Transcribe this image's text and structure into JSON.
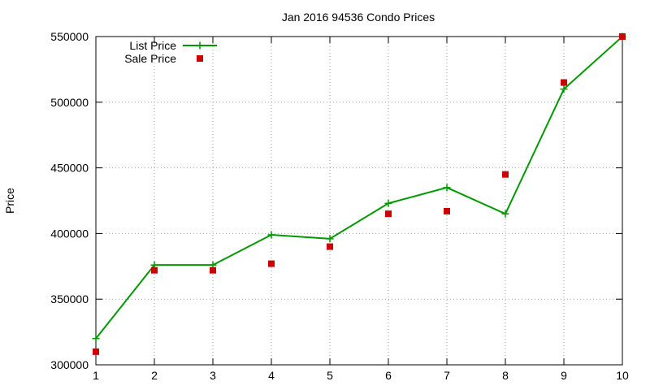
{
  "chart_data": {
    "type": "line",
    "title": "Jan 2016 94536 Condo Prices",
    "xlabel": "",
    "ylabel": "Price",
    "x": [
      1,
      2,
      3,
      4,
      5,
      6,
      7,
      8,
      9,
      10
    ],
    "xlim": [
      1,
      10
    ],
    "ylim": [
      300000,
      550000
    ],
    "xticks": [
      1,
      2,
      3,
      4,
      5,
      6,
      7,
      8,
      9,
      10
    ],
    "yticks": [
      300000,
      350000,
      400000,
      450000,
      500000,
      550000
    ],
    "grid": true,
    "legend_position": "top-left",
    "series": [
      {
        "name": "List Price",
        "style": "line-with-plus-markers",
        "color": "#009900",
        "values": [
          320000,
          376000,
          376000,
          399000,
          396000,
          423000,
          435000,
          415000,
          510000,
          550000
        ]
      },
      {
        "name": "Sale Price",
        "style": "square-markers",
        "color": "#cc0000",
        "values": [
          310000,
          372000,
          372000,
          377000,
          390000,
          415000,
          417000,
          445000,
          515000,
          550000
        ]
      }
    ]
  }
}
